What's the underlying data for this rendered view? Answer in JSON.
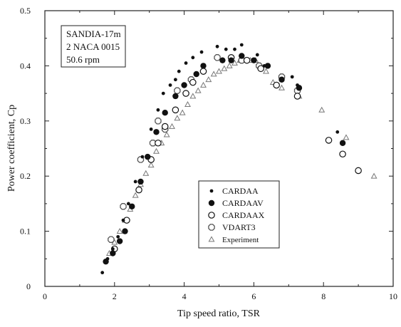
{
  "chart_data": {
    "type": "scatter",
    "xlabel": "Tip speed ratio, TSR",
    "ylabel": "Power coefficient, Cp",
    "xlim": [
      0,
      10
    ],
    "ylim": [
      0,
      0.5
    ],
    "xticks": [
      "0",
      "2",
      "4",
      "6",
      "8",
      "10"
    ],
    "yticks": [
      "0",
      "0.1",
      "0.2",
      "0.3",
      "0.4",
      "0.5"
    ],
    "grid": false,
    "legend_position": "lower-middle",
    "annotation": [
      "SANDIA-17m",
      "2 NACA 0015",
      "50.6 rpm"
    ],
    "series": [
      {
        "name": "CARDAA",
        "marker": "small-filled-circle",
        "color": "#111111",
        "x": [
          1.65,
          1.8,
          1.95,
          2.1,
          2.25,
          2.4,
          2.6,
          2.8,
          3.05,
          3.25,
          3.4,
          3.6,
          3.75,
          3.85,
          4.05,
          4.25,
          4.5,
          4.95,
          5.2,
          5.45,
          5.65,
          6.1,
          6.3,
          7.1,
          7.25,
          8.4
        ],
        "y": [
          0.025,
          0.05,
          0.068,
          0.09,
          0.12,
          0.15,
          0.19,
          0.235,
          0.285,
          0.32,
          0.35,
          0.365,
          0.375,
          0.39,
          0.405,
          0.415,
          0.425,
          0.435,
          0.43,
          0.43,
          0.438,
          0.42,
          0.4,
          0.38,
          0.365,
          0.28
        ]
      },
      {
        "name": "CARDAAV",
        "marker": "large-filled-circle",
        "color": "#111111",
        "x": [
          1.75,
          1.95,
          2.15,
          2.3,
          2.5,
          2.75,
          2.95,
          3.2,
          3.45,
          3.75,
          4.0,
          4.35,
          4.55,
          5.1,
          5.35,
          5.65,
          6.0,
          6.4,
          6.8,
          7.3,
          8.55
        ],
        "y": [
          0.045,
          0.06,
          0.082,
          0.1,
          0.145,
          0.19,
          0.235,
          0.28,
          0.315,
          0.345,
          0.365,
          0.385,
          0.4,
          0.41,
          0.41,
          0.418,
          0.41,
          0.4,
          0.375,
          0.36,
          0.26
        ]
      },
      {
        "name": "CARDAAX",
        "marker": "open-circle",
        "color": "#111111",
        "x": [
          2.0,
          2.35,
          2.7,
          3.05,
          3.25,
          3.45,
          3.75,
          4.05,
          4.25,
          4.55,
          5.35,
          5.8,
          6.2,
          6.65,
          7.25,
          8.15,
          8.55,
          9.0
        ],
        "y": [
          0.068,
          0.12,
          0.175,
          0.23,
          0.26,
          0.29,
          0.32,
          0.35,
          0.37,
          0.39,
          0.415,
          0.41,
          0.395,
          0.365,
          0.345,
          0.265,
          0.24,
          0.21
        ]
      },
      {
        "name": "VDART3",
        "marker": "open-octagon",
        "color": "#555555",
        "x": [
          1.9,
          2.25,
          2.75,
          3.1,
          3.25,
          3.45,
          3.8,
          4.2,
          4.95,
          5.65,
          6.15,
          6.8,
          7.25
        ],
        "y": [
          0.085,
          0.145,
          0.23,
          0.26,
          0.3,
          0.285,
          0.355,
          0.375,
          0.415,
          0.41,
          0.4,
          0.38,
          0.355
        ]
      },
      {
        "name": "Experiment",
        "marker": "triangle",
        "color": "#777777",
        "x": [
          1.85,
          2.0,
          2.15,
          2.3,
          2.45,
          2.6,
          2.75,
          2.9,
          3.05,
          3.2,
          3.35,
          3.5,
          3.65,
          3.8,
          3.95,
          4.1,
          4.25,
          4.4,
          4.55,
          4.7,
          4.85,
          5.0,
          5.15,
          5.3,
          5.45,
          5.6,
          5.75,
          5.9,
          6.05,
          6.2,
          6.35,
          6.55,
          6.8,
          7.3,
          7.95,
          8.65,
          9.45
        ],
        "y": [
          0.06,
          0.08,
          0.1,
          0.12,
          0.14,
          0.165,
          0.185,
          0.205,
          0.22,
          0.245,
          0.26,
          0.275,
          0.29,
          0.305,
          0.315,
          0.33,
          0.345,
          0.355,
          0.365,
          0.375,
          0.385,
          0.39,
          0.395,
          0.4,
          0.405,
          0.41,
          0.41,
          0.41,
          0.41,
          0.4,
          0.39,
          0.37,
          0.36,
          0.345,
          0.32,
          0.27,
          0.2
        ]
      }
    ]
  }
}
